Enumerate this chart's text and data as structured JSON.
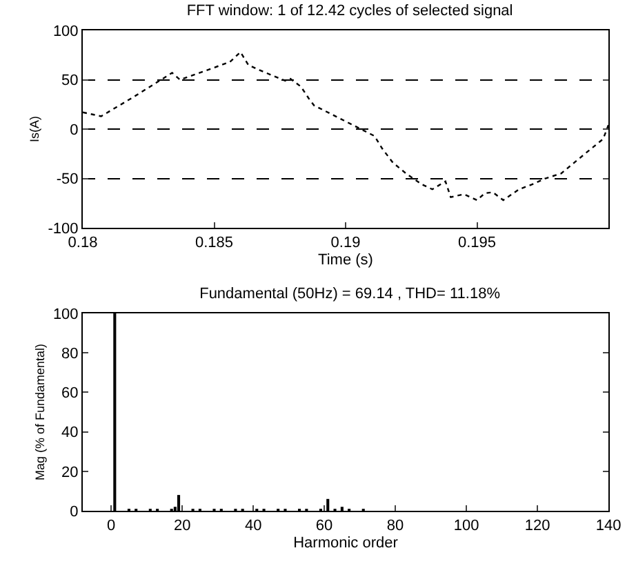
{
  "chart_data": [
    {
      "type": "line",
      "title": "FFT window: 1 of 12.42 cycles of selected signal",
      "xlabel": "Time (s)",
      "ylabel": "Is(A)",
      "xlim": [
        0.18,
        0.2
      ],
      "ylim": [
        -100,
        100
      ],
      "xticks": [
        0.18,
        0.185,
        0.19,
        0.195
      ],
      "yticks": [
        -100,
        -50,
        0,
        50,
        100
      ],
      "grid": "y",
      "line_style": "dotted",
      "marker": "none",
      "series": [
        {
          "color": "#000000",
          "x": [
            0.18,
            0.1807,
            0.1819,
            0.1834,
            0.1837,
            0.1856,
            0.186,
            0.1863,
            0.1867,
            0.1877,
            0.1879,
            0.1883,
            0.1886,
            0.1888,
            0.1911,
            0.1914,
            0.1918,
            0.1923,
            0.1929,
            0.1933,
            0.1938,
            0.194,
            0.1945,
            0.195,
            0.1953,
            0.1956,
            0.196,
            0.1966,
            0.1971,
            0.1976,
            0.1982,
            0.1987,
            0.1992,
            0.1998,
            0.2
          ],
          "values": [
            17,
            13,
            32,
            57,
            50,
            68,
            78,
            65,
            60,
            49,
            51,
            43,
            31,
            24,
            -7,
            -20,
            -34,
            -45,
            -56,
            -61,
            -53,
            -69,
            -66,
            -72,
            -65,
            -64,
            -72,
            -61,
            -56,
            -50,
            -45,
            -34,
            -23,
            -10,
            4
          ]
        }
      ]
    },
    {
      "type": "bar",
      "title": "Fundamental (50Hz) = 69.14 , THD= 11.18%",
      "xlabel": "Harmonic order",
      "ylabel": "Mag (% of Fundamental)",
      "xlim": [
        -8,
        140
      ],
      "ylim": [
        0,
        100
      ],
      "xticks": [
        0,
        20,
        40,
        60,
        80,
        100,
        120,
        140
      ],
      "yticks": [
        0,
        20,
        40,
        60,
        80,
        100
      ],
      "grid": false,
      "series": [
        {
          "color": "#000000",
          "x": [
            1,
            5,
            7,
            11,
            13,
            17,
            18,
            19,
            23,
            25,
            29,
            31,
            35,
            37,
            41,
            43,
            47,
            49,
            53,
            55,
            59,
            61,
            63,
            65,
            67,
            71
          ],
          "values": [
            100,
            1,
            1,
            1,
            1,
            1,
            2,
            8,
            1,
            1,
            1,
            1,
            1,
            1,
            1,
            1,
            1,
            1,
            1,
            1,
            1,
            6,
            1,
            2,
            1,
            1
          ]
        }
      ]
    }
  ]
}
